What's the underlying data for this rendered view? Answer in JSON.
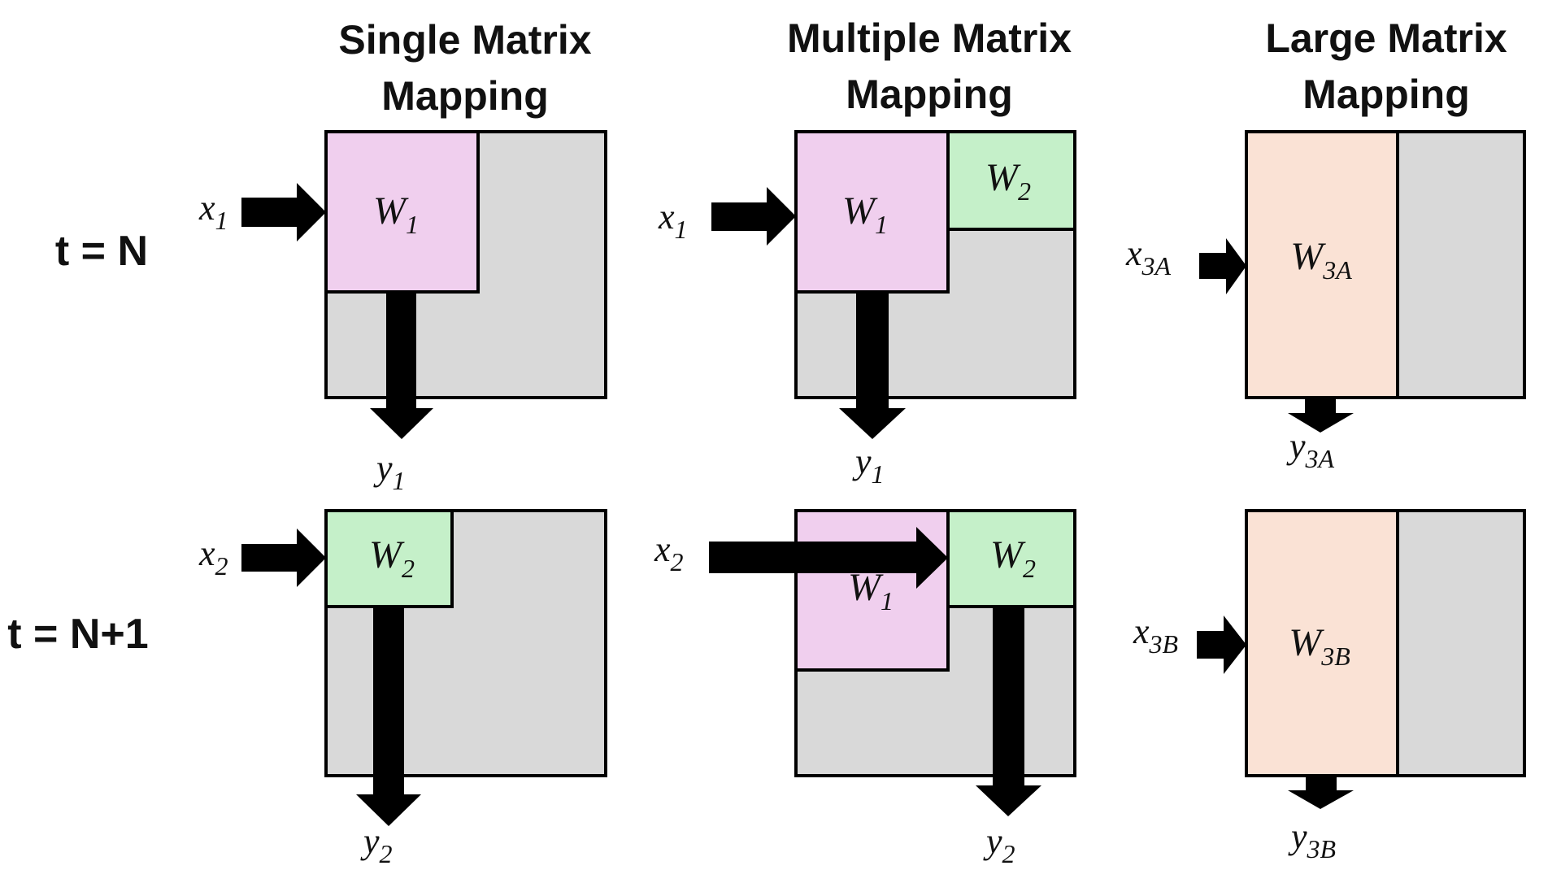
{
  "columns": {
    "single": {
      "title_line1": "Single Matrix",
      "title_line2": "Mapping"
    },
    "multiple": {
      "title_line1": "Multiple Matrix",
      "title_line2": "Mapping"
    },
    "large": {
      "title_line1": "Large Matrix",
      "title_line2": "Mapping"
    }
  },
  "rows": {
    "t_n": {
      "label": "t = N"
    },
    "t_n1": {
      "label": "t = N+1"
    }
  },
  "colors": {
    "array_bg": "#d9d9d9",
    "pink_w1": "#f0cfee",
    "green_w2": "#c5f0c9",
    "peach_w3": "#fae2d5",
    "stroke": "#000000"
  },
  "labels": {
    "x": "x",
    "y": "y",
    "W": "W",
    "sub1": "1",
    "sub2": "2",
    "sub3A": "3A",
    "sub3B": "3B"
  }
}
